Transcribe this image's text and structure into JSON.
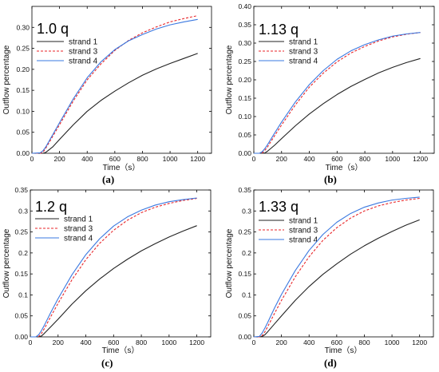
{
  "figure": {
    "colors": {
      "strand 1": "#222222",
      "strand 3": "#e8262a",
      "strand 4": "#3a78e0"
    },
    "line_styles": {
      "strand 1": "solid",
      "strand 3": "dashed",
      "strand 4": "solid"
    }
  },
  "chart_data": [
    {
      "panel": "(a)",
      "type": "line",
      "annotation": "1.0 q",
      "xlabel": "Time（s）",
      "ylabel": "Outflow percentage",
      "xlim": [
        0,
        1300
      ],
      "ylim": [
        0,
        0.35
      ],
      "xticks": [
        "0",
        "200",
        "400",
        "600",
        "800",
        "1000",
        "1200"
      ],
      "yticks": [
        "0.00",
        "0.05",
        "0.10",
        "0.15",
        "0.20",
        "0.25",
        "0.30"
      ],
      "ytick_values": [
        0,
        0.05,
        0.1,
        0.15,
        0.2,
        0.25,
        0.3
      ],
      "legend_position": "upper-left",
      "x": [
        0,
        60,
        80,
        100,
        150,
        200,
        300,
        400,
        500,
        600,
        700,
        800,
        900,
        1000,
        1100,
        1200
      ],
      "series": [
        {
          "name": "strand 1",
          "values": [
            0,
            0,
            0,
            0.002,
            0.015,
            0.033,
            0.068,
            0.1,
            0.126,
            0.148,
            0.168,
            0.186,
            0.201,
            0.214,
            0.226,
            0.238
          ]
        },
        {
          "name": "strand 3",
          "values": [
            0,
            0,
            0.002,
            0.012,
            0.04,
            0.068,
            0.125,
            0.175,
            0.213,
            0.245,
            0.269,
            0.287,
            0.301,
            0.313,
            0.321,
            0.328
          ]
        },
        {
          "name": "strand 4",
          "values": [
            0,
            0.001,
            0.006,
            0.015,
            0.044,
            0.073,
            0.13,
            0.18,
            0.218,
            0.247,
            0.268,
            0.283,
            0.296,
            0.306,
            0.313,
            0.319
          ]
        }
      ]
    },
    {
      "panel": "(b)",
      "type": "line",
      "annotation": "1.13 q",
      "xlabel": "Time（s）",
      "ylabel": "Outflow percentage",
      "xlim": [
        0,
        1300
      ],
      "ylim": [
        0,
        0.4
      ],
      "xticks": [
        "0",
        "200",
        "400",
        "600",
        "800",
        "1000",
        "1200"
      ],
      "yticks": [
        "0.00",
        "0.05",
        "0.10",
        "0.15",
        "0.20",
        "0.25",
        "0.30",
        "0.35",
        "0.40"
      ],
      "ytick_values": [
        0,
        0.05,
        0.1,
        0.15,
        0.2,
        0.25,
        0.3,
        0.35,
        0.4
      ],
      "legend_position": "upper-left",
      "x": [
        0,
        40,
        60,
        80,
        100,
        150,
        200,
        300,
        400,
        500,
        600,
        700,
        800,
        900,
        1000,
        1100,
        1200
      ],
      "series": [
        {
          "name": "strand 1",
          "values": [
            0,
            0,
            0,
            0.001,
            0.006,
            0.022,
            0.04,
            0.075,
            0.107,
            0.135,
            0.16,
            0.182,
            0.201,
            0.219,
            0.234,
            0.247,
            0.258
          ]
        },
        {
          "name": "strand 3",
          "values": [
            0,
            0,
            0.001,
            0.008,
            0.018,
            0.048,
            0.077,
            0.132,
            0.18,
            0.218,
            0.249,
            0.273,
            0.291,
            0.306,
            0.317,
            0.324,
            0.329
          ]
        },
        {
          "name": "strand 4",
          "values": [
            0,
            0,
            0.004,
            0.013,
            0.024,
            0.055,
            0.085,
            0.14,
            0.187,
            0.225,
            0.256,
            0.279,
            0.296,
            0.309,
            0.319,
            0.325,
            0.329
          ]
        }
      ]
    },
    {
      "panel": "(c)",
      "type": "line",
      "annotation": "1.2 q",
      "xlabel": "Time（s）",
      "ylabel": "Outflow percentage",
      "xlim": [
        0,
        1300
      ],
      "ylim": [
        0,
        0.35
      ],
      "xticks": [
        "0",
        "200",
        "400",
        "600",
        "800",
        "1000",
        "1200"
      ],
      "yticks": [
        "0.00",
        "0.05",
        "0.1",
        "0.15",
        "0.2",
        "0.25",
        "0.3",
        "0.35"
      ],
      "ytick_values": [
        0,
        0.05,
        0.1,
        0.15,
        0.2,
        0.25,
        0.3,
        0.35
      ],
      "legend_position": "upper-left",
      "x": [
        0,
        40,
        60,
        80,
        100,
        150,
        200,
        300,
        400,
        500,
        600,
        700,
        800,
        900,
        1000,
        1100,
        1200
      ],
      "series": [
        {
          "name": "strand 1",
          "values": [
            0,
            0,
            0,
            0.002,
            0.008,
            0.025,
            0.042,
            0.078,
            0.11,
            0.138,
            0.163,
            0.185,
            0.205,
            0.222,
            0.238,
            0.252,
            0.265
          ]
        },
        {
          "name": "strand 3",
          "values": [
            0,
            0,
            0.001,
            0.008,
            0.019,
            0.05,
            0.08,
            0.136,
            0.184,
            0.223,
            0.254,
            0.278,
            0.296,
            0.309,
            0.318,
            0.325,
            0.33
          ]
        },
        {
          "name": "strand 4",
          "values": [
            0,
            0,
            0.005,
            0.015,
            0.027,
            0.06,
            0.091,
            0.148,
            0.196,
            0.234,
            0.264,
            0.286,
            0.302,
            0.314,
            0.322,
            0.327,
            0.331
          ]
        }
      ]
    },
    {
      "panel": "(d)",
      "type": "line",
      "annotation": "1.33 q",
      "xlabel": "Time（s）",
      "ylabel": "Outflow percentage",
      "xlim": [
        0,
        1300
      ],
      "ylim": [
        0,
        0.35
      ],
      "xticks": [
        "0",
        "200",
        "400",
        "600",
        "800",
        "1000",
        "1200"
      ],
      "yticks": [
        "0.00",
        "0.05",
        "0.1",
        "0.15",
        "0.2",
        "0.25",
        "0.3",
        "0.35"
      ],
      "ytick_values": [
        0,
        0.05,
        0.1,
        0.15,
        0.2,
        0.25,
        0.3,
        0.35
      ],
      "legend_position": "upper-left",
      "x": [
        0,
        40,
        60,
        80,
        100,
        150,
        200,
        300,
        400,
        500,
        600,
        700,
        800,
        900,
        1000,
        1100,
        1200
      ],
      "series": [
        {
          "name": "strand 1",
          "values": [
            0,
            0,
            0.001,
            0.005,
            0.012,
            0.031,
            0.05,
            0.087,
            0.12,
            0.149,
            0.174,
            0.197,
            0.217,
            0.235,
            0.251,
            0.266,
            0.279
          ]
        },
        {
          "name": "strand 3",
          "values": [
            0,
            0,
            0.003,
            0.012,
            0.024,
            0.056,
            0.087,
            0.143,
            0.191,
            0.23,
            0.26,
            0.283,
            0.3,
            0.312,
            0.32,
            0.326,
            0.33
          ]
        },
        {
          "name": "strand 4",
          "values": [
            0,
            0.001,
            0.009,
            0.021,
            0.034,
            0.069,
            0.101,
            0.158,
            0.206,
            0.244,
            0.273,
            0.294,
            0.309,
            0.319,
            0.326,
            0.33,
            0.333
          ]
        }
      ]
    }
  ]
}
